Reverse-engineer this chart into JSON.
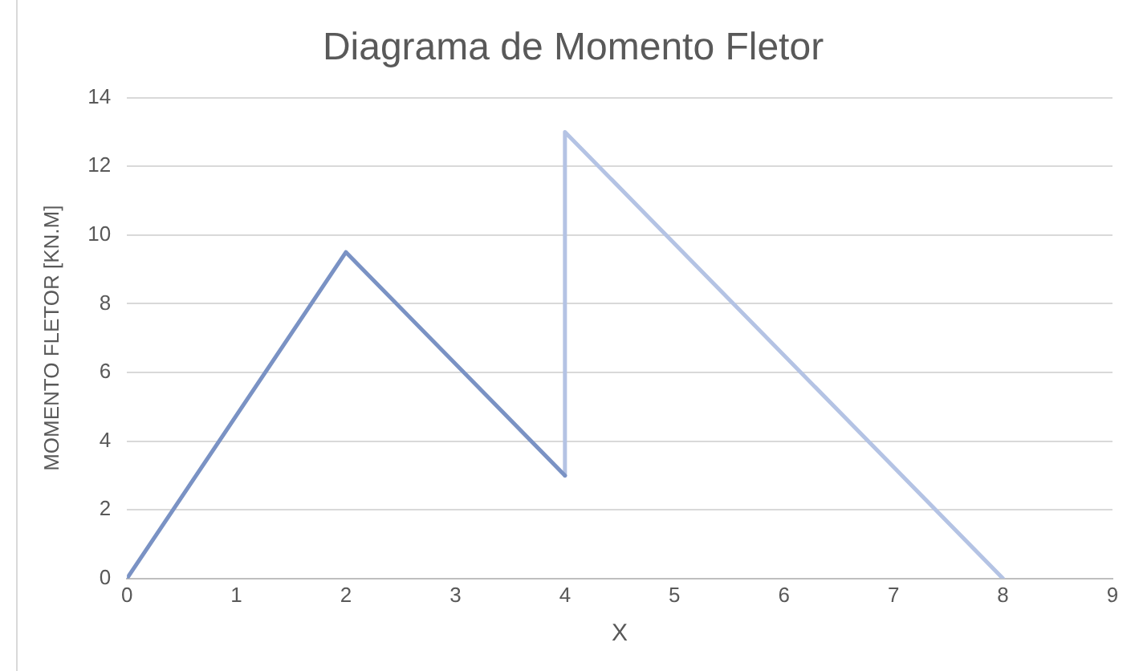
{
  "chart_data": {
    "type": "line",
    "title": "Diagrama de Momento Fletor",
    "xlabel": "X",
    "ylabel": "MOMENTO FLETOR [KN.M]",
    "series": [
      {
        "color": "#7a92c4",
        "x": [
          0,
          2,
          4
        ],
        "values": [
          0,
          9.5,
          3
        ]
      },
      {
        "color": "#b4c3e4",
        "x": [
          4,
          4,
          8
        ],
        "values": [
          3,
          13,
          0
        ]
      }
    ],
    "xlim": [
      0,
      9
    ],
    "xticks": [
      0,
      1,
      2,
      3,
      4,
      5,
      6,
      7,
      8,
      9
    ],
    "ylim": [
      0,
      14
    ],
    "yticks": [
      0,
      2,
      4,
      6,
      8,
      10,
      12,
      14
    ],
    "grid": "y",
    "legend": false,
    "marker": "none",
    "line_style": "solid"
  }
}
